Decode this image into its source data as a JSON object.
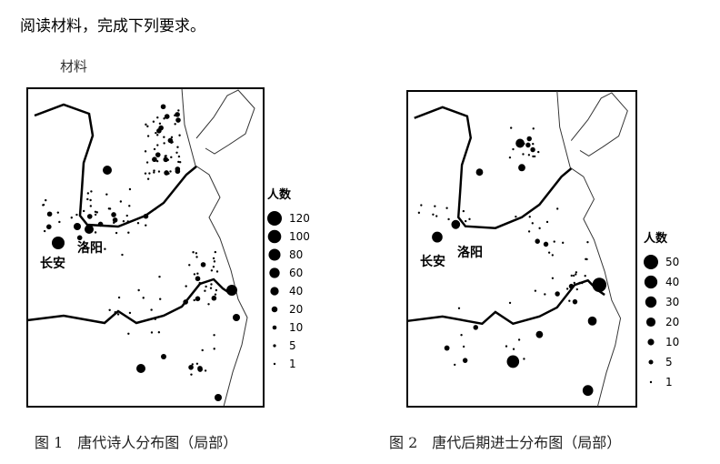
{
  "question": "阅读材料，完成下列要求。",
  "material_label": "材料",
  "figures": [
    {
      "caption": "图 1　唐代诗人分布图（局部）",
      "city_labels": [
        "长安",
        "洛阳"
      ],
      "legend_title": "人数",
      "legend_values": [
        120,
        100,
        80,
        60,
        40,
        20,
        10,
        5,
        1
      ]
    },
    {
      "caption": "图 2　唐代后期进士分布图（局部）",
      "city_labels": [
        "长安",
        "洛阳"
      ],
      "legend_title": "人数",
      "legend_values": [
        50,
        40,
        30,
        20,
        10,
        5,
        1
      ]
    }
  ]
}
